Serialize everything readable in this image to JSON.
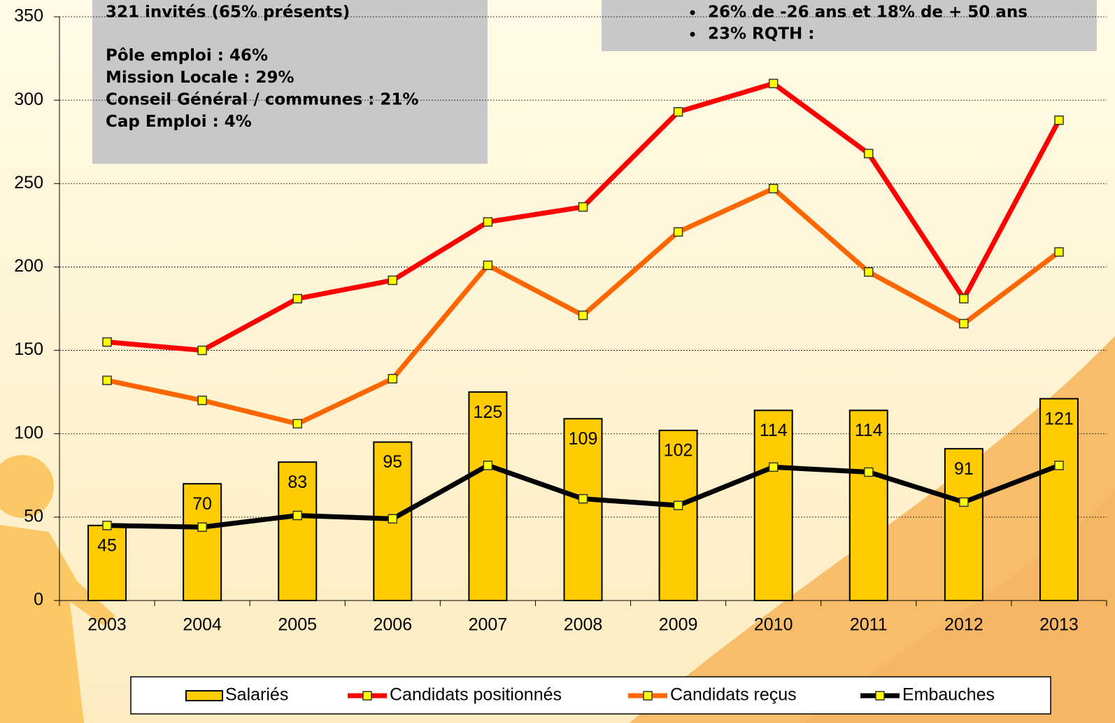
{
  "chart_data": {
    "type": "bar-line",
    "categories": [
      "2003",
      "2004",
      "2005",
      "2006",
      "2007",
      "2008",
      "2009",
      "2010",
      "2011",
      "2012",
      "2013"
    ],
    "series": [
      {
        "name": "Salariés",
        "kind": "bar",
        "color": "#ffcc00",
        "values": [
          45,
          70,
          83,
          95,
          125,
          109,
          102,
          114,
          114,
          91,
          121
        ]
      },
      {
        "name": "Candidats positionnés",
        "kind": "line",
        "color": "#ff0000",
        "values": [
          155,
          150,
          181,
          192,
          227,
          236,
          293,
          310,
          268,
          181,
          288
        ]
      },
      {
        "name": "Candidats reçus",
        "kind": "line",
        "color": "#ff6600",
        "values": [
          132,
          120,
          106,
          133,
          201,
          171,
          221,
          247,
          197,
          166,
          209
        ]
      },
      {
        "name": "Embauches",
        "kind": "line",
        "color": "#000000",
        "values": [
          45,
          44,
          51,
          49,
          81,
          61,
          57,
          80,
          77,
          59,
          81
        ]
      }
    ],
    "ylim": [
      0,
      350
    ],
    "yticks": [
      0,
      50,
      100,
      150,
      200,
      250,
      300,
      350
    ],
    "grid": true,
    "annotations": {
      "left_box": [
        "321 invités (65% présents)",
        "Pôle emploi : 46%",
        "Mission Locale :  29%",
        "Conseil Général / communes : 21%",
        "Cap Emploi : 4%"
      ],
      "right_box": [
        "26% de -26 ans et 18% de + 50 ans",
        "23% RQTH :"
      ]
    }
  }
}
